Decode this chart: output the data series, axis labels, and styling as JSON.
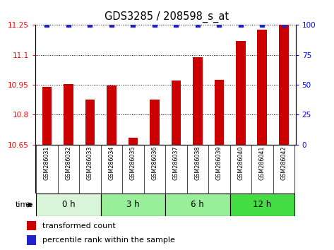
{
  "title": "GDS3285 / 208598_s_at",
  "samples": [
    "GSM286031",
    "GSM286032",
    "GSM286033",
    "GSM286034",
    "GSM286035",
    "GSM286036",
    "GSM286037",
    "GSM286038",
    "GSM286039",
    "GSM286040",
    "GSM286041",
    "GSM286042"
  ],
  "bar_values": [
    10.94,
    10.955,
    10.875,
    10.945,
    10.685,
    10.875,
    10.97,
    11.09,
    10.975,
    11.17,
    11.225,
    11.25
  ],
  "percentile_values": [
    100,
    100,
    100,
    100,
    100,
    100,
    100,
    100,
    100,
    100,
    100,
    100
  ],
  "bar_color": "#cc0000",
  "percentile_color": "#2222cc",
  "ylim_left": [
    10.65,
    11.25
  ],
  "ylim_right": [
    0,
    100
  ],
  "yticks_left": [
    10.65,
    10.8,
    10.95,
    11.1,
    11.25
  ],
  "ytick_labels_left": [
    "10.65",
    "10.8",
    "10.95",
    "11.1",
    "11.25"
  ],
  "yticks_right": [
    0,
    25,
    50,
    75,
    100
  ],
  "ytick_labels_right": [
    "0",
    "25",
    "50",
    "75",
    "100"
  ],
  "group_defs": [
    {
      "start": 0,
      "end": 3,
      "label": "0 h",
      "facecolor": "#d9f5d9"
    },
    {
      "start": 3,
      "end": 6,
      "label": "3 h",
      "facecolor": "#99ee99"
    },
    {
      "start": 6,
      "end": 9,
      "label": "6 h",
      "facecolor": "#99ee99"
    },
    {
      "start": 9,
      "end": 12,
      "label": "12 h",
      "facecolor": "#44dd44"
    }
  ],
  "sample_area_facecolor": "#cccccc",
  "time_label": "time",
  "legend_bar_label": "transformed count",
  "legend_pct_label": "percentile rank within the sample"
}
